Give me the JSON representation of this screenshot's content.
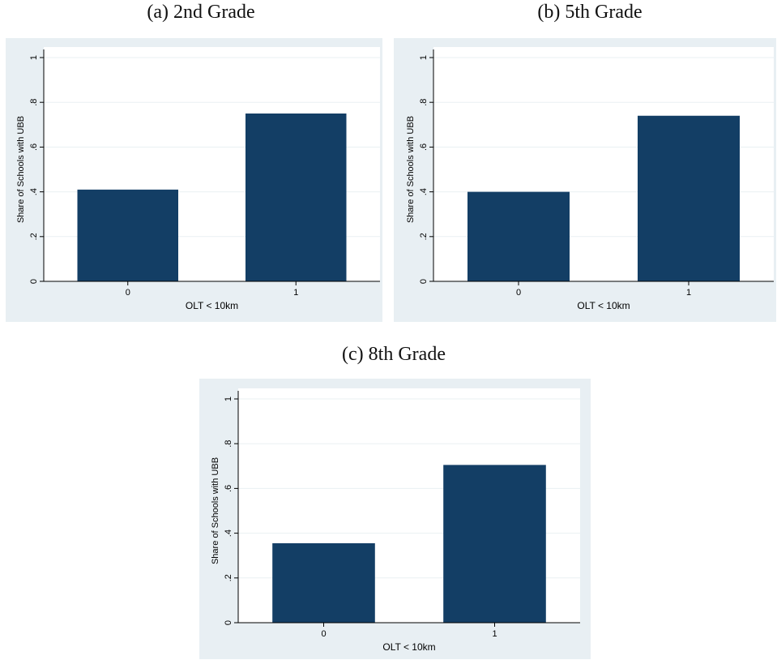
{
  "colors": {
    "bar": "#133e65",
    "outer_background": "#e8eff3",
    "plot_background": "#ffffff",
    "gridline": "#eaf0f3",
    "axis": "#000000"
  },
  "chart_data": [
    {
      "type": "bar",
      "title": "(a) 2nd Grade",
      "categories": [
        "0",
        "1"
      ],
      "values": [
        0.41,
        0.75
      ],
      "xlabel": "OLT < 10km",
      "ylabel": "Share of Schools with UBB",
      "ylim": [
        0,
        1
      ],
      "yticks": [
        0,
        0.2,
        0.4,
        0.6,
        0.8,
        1
      ],
      "ytick_labels": [
        "0",
        ".2",
        ".4",
        ".6",
        ".8",
        "1"
      ],
      "grid": true
    },
    {
      "type": "bar",
      "title": "(b) 5th Grade",
      "categories": [
        "0",
        "1"
      ],
      "values": [
        0.4,
        0.74
      ],
      "xlabel": "OLT < 10km",
      "ylabel": "Share of Schools with UBB",
      "ylim": [
        0,
        1
      ],
      "yticks": [
        0,
        0.2,
        0.4,
        0.6,
        0.8,
        1
      ],
      "ytick_labels": [
        "0",
        ".2",
        ".4",
        ".6",
        ".8",
        "1"
      ],
      "grid": true
    },
    {
      "type": "bar",
      "title": "(c) 8th Grade",
      "categories": [
        "0",
        "1"
      ],
      "values": [
        0.355,
        0.705
      ],
      "xlabel": "OLT < 10km",
      "ylabel": "Share of Schools with UBB",
      "ylim": [
        0,
        1
      ],
      "yticks": [
        0,
        0.2,
        0.4,
        0.6,
        0.8,
        1
      ],
      "ytick_labels": [
        "0",
        ".2",
        ".4",
        ".6",
        ".8",
        "1"
      ],
      "grid": true
    }
  ]
}
